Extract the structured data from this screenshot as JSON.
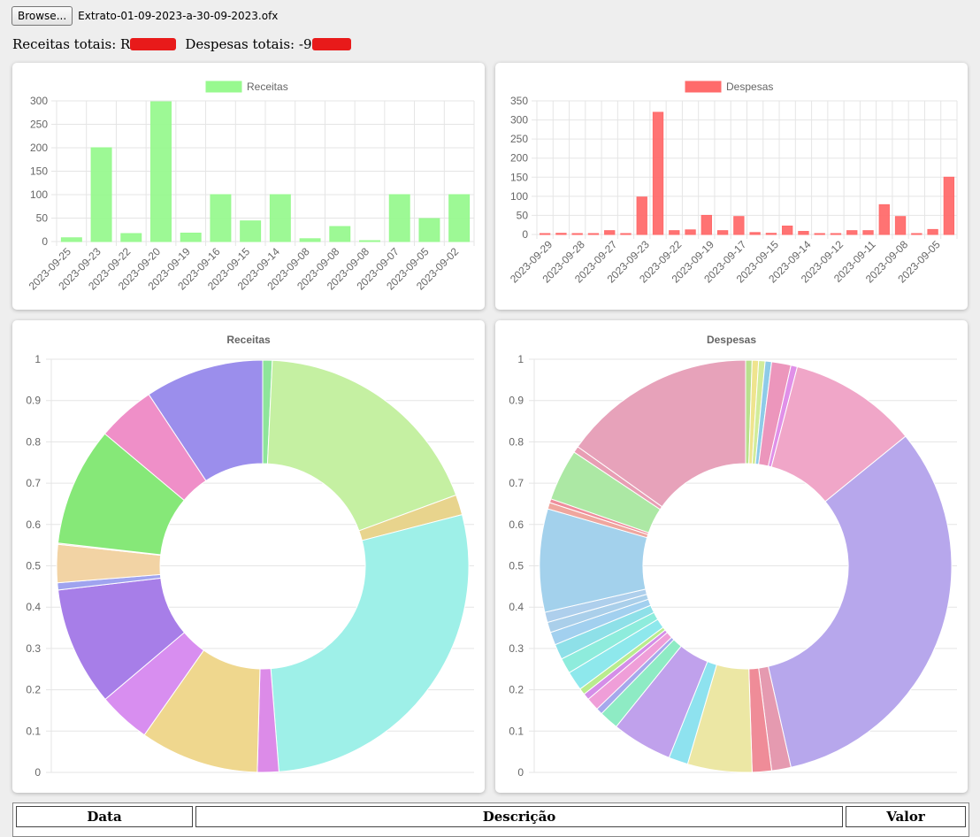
{
  "toolbar": {
    "browse_label": "Browse...",
    "file_name": "Extrato-01-09-2023-a-30-09-2023.ofx"
  },
  "totals": {
    "receitas_label": "Receitas totais: ",
    "receitas_value": "R",
    "despesas_label": "Despesas totais: ",
    "despesas_value": "-9"
  },
  "colors": {
    "receitas": "#98f98f",
    "despesas": "#ff6b6b"
  },
  "chart_data": [
    {
      "type": "bar",
      "legend": "Receitas",
      "categories": [
        "2023-09-25",
        "2023-09-23",
        "2023-09-22",
        "2023-09-20",
        "2023-09-19",
        "2023-09-16",
        "2023-09-15",
        "2023-09-14",
        "2023-09-08",
        "2023-09-08",
        "2023-09-08",
        "2023-09-07",
        "2023-09-05",
        "2023-09-02"
      ],
      "values": [
        8,
        200,
        17,
        298,
        18,
        100,
        44,
        100,
        6,
        32,
        1,
        100,
        49,
        100
      ],
      "ylim": [
        0,
        300
      ],
      "yticks": [
        0,
        50,
        100,
        150,
        200,
        250,
        300
      ],
      "color": "#98f98f",
      "grid": true,
      "legend_position": "top"
    },
    {
      "type": "bar",
      "legend": "Despesas",
      "categories": [
        "2023-09-29",
        "",
        "2023-09-28",
        "",
        "2023-09-27",
        "",
        "2023-09-23",
        "",
        "2023-09-22",
        "",
        "2023-09-19",
        "",
        "2023-09-17",
        "",
        "2023-09-15",
        "",
        "2023-09-14",
        "",
        "2023-09-12",
        "",
        "2023-09-11",
        "",
        "2023-09-08",
        "",
        "2023-09-05",
        ""
      ],
      "values": [
        2,
        3,
        2,
        2,
        10,
        2,
        98,
        320,
        10,
        12,
        50,
        10,
        47,
        5,
        3,
        22,
        8,
        0,
        2,
        10,
        10,
        78,
        47,
        0,
        13,
        150
      ],
      "ylim": [
        0,
        350
      ],
      "yticks": [
        0,
        50,
        100,
        150,
        200,
        250,
        300,
        350
      ],
      "color": "#ff6b6b",
      "grid": true,
      "legend_position": "top"
    },
    {
      "type": "pie",
      "title": "Receitas",
      "donut": true,
      "yticks": [
        0,
        0.1,
        0.2,
        0.3,
        0.4,
        0.5,
        0.6,
        0.7,
        0.8,
        0.9,
        1
      ],
      "values": [
        8,
        200,
        17,
        298,
        18,
        100,
        44,
        100,
        6,
        32,
        1,
        100,
        49,
        100
      ],
      "colors": [
        "#8ee59a",
        "#c5f0a2",
        "#e8d48d",
        "#9ef0e8",
        "#dc8be8",
        "#efd78e",
        "#d88ef0",
        "#a77ee8",
        "#9fa3ef",
        "#f2d3a4",
        "#f3c9b8",
        "#86e878",
        "#ef8fc8",
        "#9b8eec"
      ]
    },
    {
      "type": "pie",
      "title": "Despesas",
      "donut": true,
      "yticks": [
        0,
        0.1,
        0.2,
        0.3,
        0.4,
        0.5,
        0.6,
        0.7,
        0.8,
        0.9,
        1
      ],
      "values": [
        5,
        5,
        5,
        5,
        15,
        5,
        100,
        320,
        15,
        15,
        50,
        15,
        47,
        15,
        5,
        10,
        5,
        5,
        15,
        12,
        12,
        10,
        8,
        8,
        80,
        5,
        3,
        40,
        5,
        150
      ],
      "colors": [
        "#b8e08e",
        "#efe48e",
        "#d2ec9a",
        "#8ecbe8",
        "#ec96bc",
        "#e090e8",
        "#f0a6c8",
        "#b7a7ec",
        "#e59ab0",
        "#ef8c98",
        "#ece7a4",
        "#8ee2ef",
        "#c0a1ec",
        "#8eebc4",
        "#a6a8ec",
        "#ef9ed8",
        "#d48ee8",
        "#b9ec8e",
        "#8ee8ec",
        "#8eecdc",
        "#8ee0e8",
        "#a2d0ef",
        "#aacfea",
        "#aecfec",
        "#a3d1ec",
        "#efa69e",
        "#ef8e9c",
        "#ace8a4",
        "#e89eb4",
        "#e7a2ba"
      ]
    }
  ]
}
